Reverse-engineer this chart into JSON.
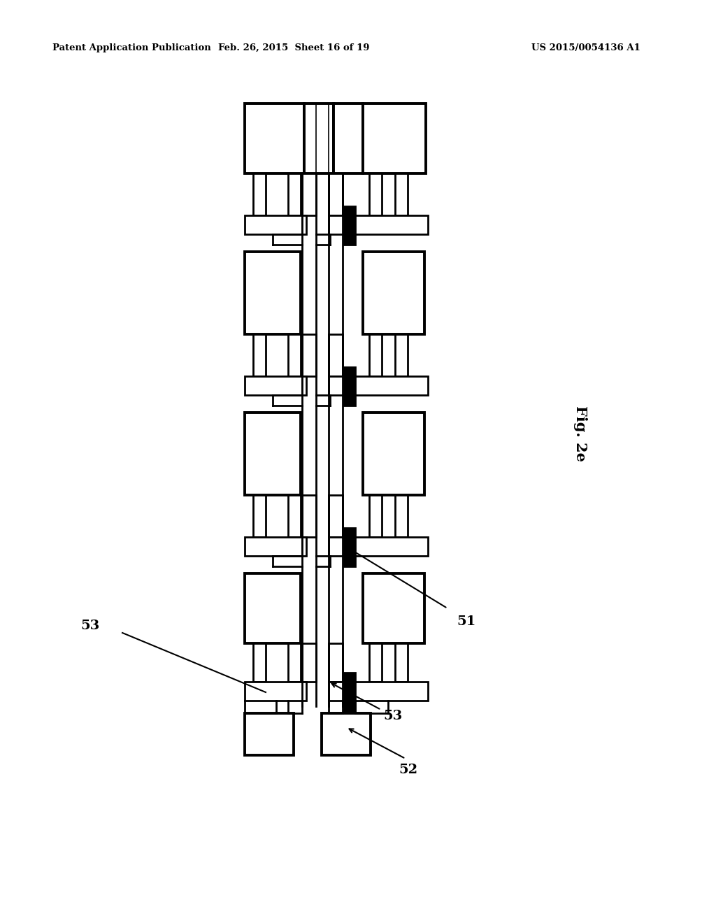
{
  "bg_color": "#ffffff",
  "header_left": "Patent Application Publication",
  "header_mid": "Feb. 26, 2015  Sheet 16 of 19",
  "header_right": "US 2015/0054136 A1",
  "fig_label": "Fig. 2e",
  "lw1": 1.2,
  "lw2": 2.0,
  "lw3": 2.8,
  "lw4": 4.5
}
